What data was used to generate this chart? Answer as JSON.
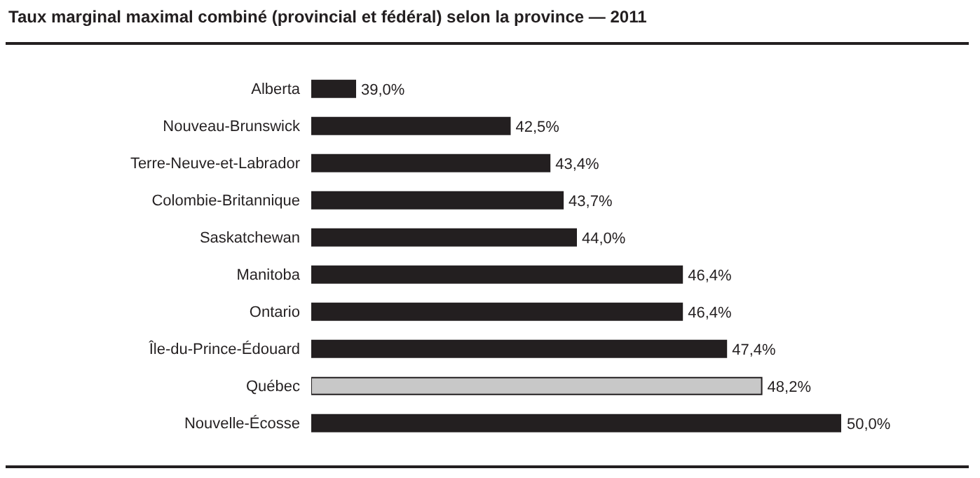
{
  "chart_data": {
    "type": "bar",
    "orientation": "horizontal",
    "title": "Taux marginal maximal combiné (provincial et fédéral) selon la province — 2011",
    "categories": [
      "Alberta",
      "Nouveau-Brunswick",
      "Terre-Neuve-et-Labrador",
      "Colombie-Britannique",
      "Saskatchewan",
      "Manitoba",
      "Ontario",
      "Île-du-Prince-Édouard",
      "Québec",
      "Nouvelle-Écosse"
    ],
    "values": [
      39.0,
      42.5,
      43.4,
      43.7,
      44.0,
      46.4,
      46.4,
      47.4,
      48.2,
      50.0
    ],
    "colors": [
      "#231f20",
      "#231f20",
      "#231f20",
      "#231f20",
      "#231f20",
      "#231f20",
      "#231f20",
      "#231f20",
      "#c8c8c8",
      "#231f20"
    ],
    "value_labels": [
      "39,0%",
      "42,5%",
      "43,4%",
      "43,7%",
      "44,0%",
      "46,4%",
      "46,4%",
      "47,4%",
      "48,2%",
      "50,0%"
    ],
    "xlim": [
      38,
      50
    ]
  }
}
